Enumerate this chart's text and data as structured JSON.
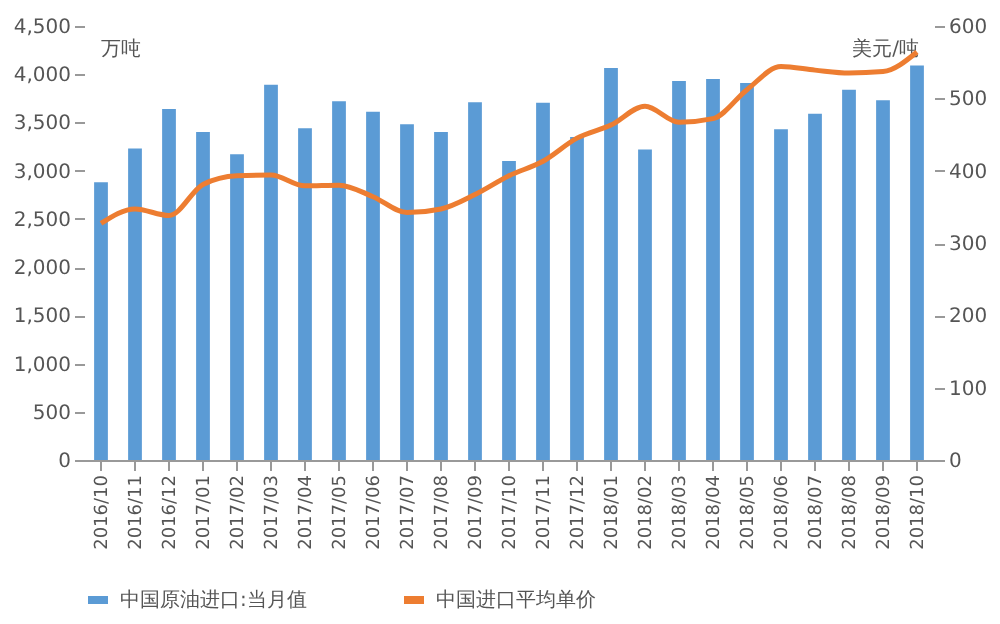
{
  "chart_data": {
    "type": "bar",
    "ylabel": "万吨",
    "y2label": "美元/吨",
    "categories": [
      "2016/10",
      "2016/11",
      "2016/12",
      "2017/01",
      "2017/02",
      "2017/03",
      "2017/04",
      "2017/05",
      "2017/06",
      "2017/07",
      "2017/08",
      "2017/09",
      "2017/10",
      "2017/11",
      "2017/12",
      "2018/01",
      "2018/02",
      "2018/03",
      "2018/04",
      "2018/05",
      "2018/06",
      "2018/07",
      "2018/08",
      "2018/09",
      "2018/10"
    ],
    "series": [
      {
        "name": "中国原油进口:当月值",
        "color": "#5b9bd5",
        "values": [
          2880,
          3230,
          3640,
          3400,
          3170,
          3890,
          3440,
          3720,
          3610,
          3480,
          3400,
          3710,
          3100,
          3705,
          3350,
          4065,
          3220,
          3930,
          3950,
          3910,
          3430,
          3590,
          3840,
          3730,
          4090
        ]
      },
      {
        "name": "中国进口平均单价",
        "type": "line",
        "axis": "y2",
        "color": "#ed7d31",
        "values": [
          327,
          347,
          338,
          381,
          393,
          394,
          379,
          380,
          364,
          342,
          347,
          367,
          393,
          413,
          445,
          463,
          489,
          467,
          472,
          512,
          544,
          539,
          535,
          537,
          564
        ]
      }
    ],
    "ylim": [
      0,
      4500
    ],
    "yticks": [
      0,
      {
        "value": 500,
        "label": "500"
      },
      {
        "value": 1000,
        "label": "1,000"
      },
      {
        "value": 1500,
        "label": "1,500"
      },
      {
        "value": 2000,
        "label": "2,000"
      },
      {
        "value": 2500,
        "label": "2,500"
      },
      {
        "value": 3000,
        "label": "3,000"
      },
      {
        "value": 3500,
        "label": "3,500"
      },
      {
        "value": 4000,
        "label": "4,000"
      },
      {
        "value": 4500,
        "label": "4,500"
      }
    ],
    "y2lim": [
      0,
      600
    ],
    "y2ticks": [
      0,
      100,
      200,
      300,
      400,
      500,
      600
    ],
    "grid": false,
    "legend": "bottom"
  }
}
